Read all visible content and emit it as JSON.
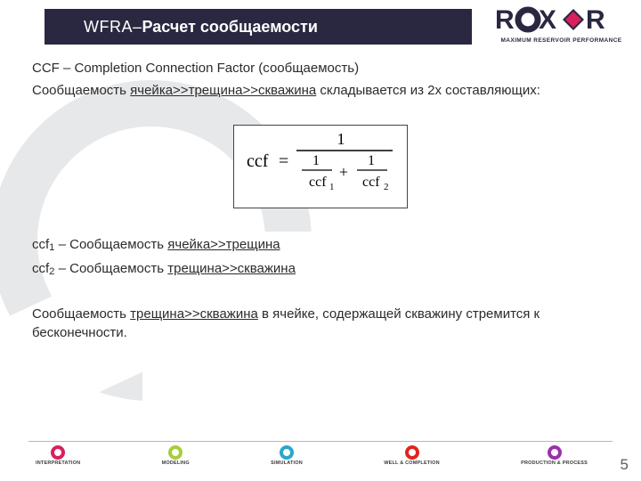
{
  "header": {
    "title_light": "WFRA",
    "title_sep": " – ",
    "title_bold": "Расчет сообщаемости"
  },
  "logo": {
    "brand": "ROXAR",
    "tagline": "MAXIMUM RESERVOIR PERFORMANCE",
    "text_color": "#2a2740",
    "accent_color": "#d91f5c"
  },
  "body": {
    "p1_pre": "CCF – Completion Connection Factor (сообщаемость)",
    "p2_pre": "Сообщаемость ",
    "p2_u": "ячейка>>трещина>>скважина",
    "p2_post": " складывается из 2х составляющих:",
    "formula": {
      "lhs": "ccf",
      "num": "1",
      "d1": "ccf",
      "d1s": "1",
      "d2": "ccf",
      "d2s": "2"
    },
    "ccf1_pre": "ccf",
    "ccf1_sub": "1",
    "ccf1_mid": " – Сообщаемость ",
    "ccf1_u": "ячейка>>трещина",
    "ccf2_pre": "ccf",
    "ccf2_sub": "2",
    "ccf2_mid": " – Сообщаемость ",
    "ccf2_u": "трещина>>скважина",
    "p3_pre": "Сообщаемость ",
    "p3_u": "трещина>>скважина",
    "p3_post": " в ячейке, содержащей скважину стремится к бесконечности."
  },
  "footer": {
    "items": [
      {
        "label": "INTERPRETATION",
        "color": "#d91f5c"
      },
      {
        "label": "MODELING",
        "color": "#a6ce39"
      },
      {
        "label": "SIMULATION",
        "color": "#2aa7cc"
      },
      {
        "label": "WELL & COMPLETION",
        "color": "#e2241f"
      },
      {
        "label": "PRODUCTION & PROCESS",
        "color": "#9b2fae"
      }
    ],
    "page": "5"
  },
  "style": {
    "header_bg": "#2a2740",
    "header_fg": "#ffffff",
    "text_color": "#2b2b2b"
  }
}
